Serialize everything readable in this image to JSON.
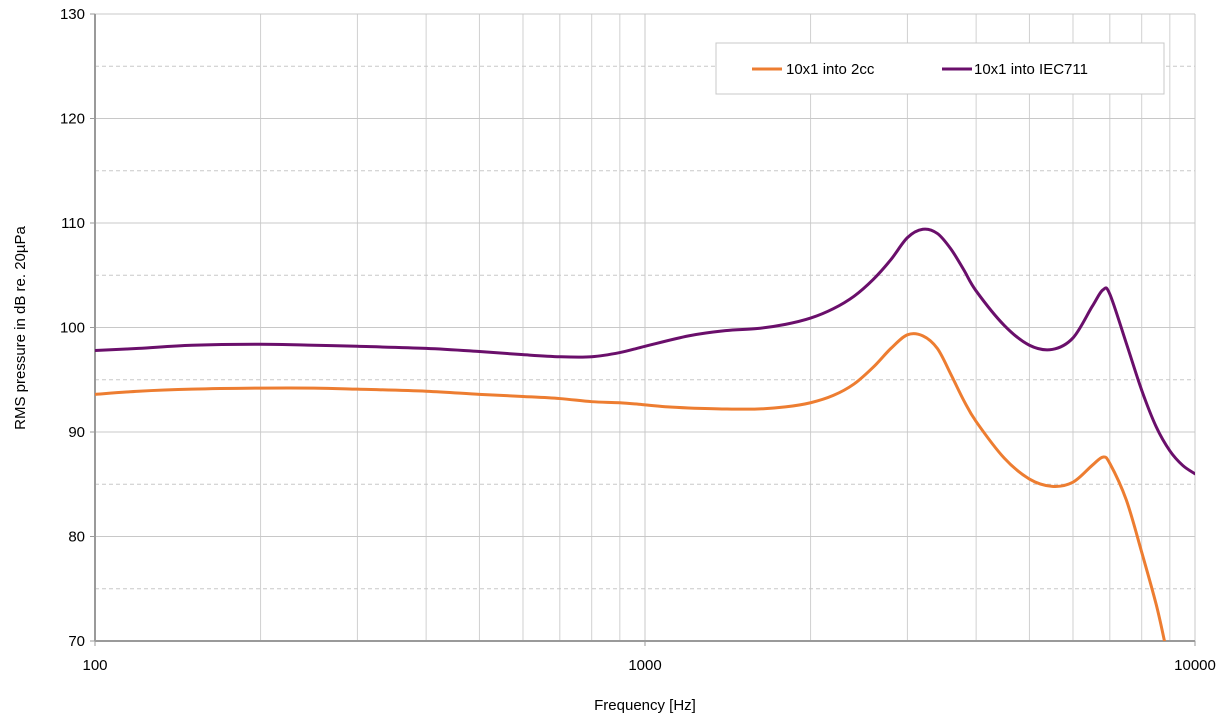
{
  "chart_data": {
    "type": "line",
    "title": "",
    "xlabel": "Frequency [Hz]",
    "ylabel": "RMS pressure in dB re. 20µPa",
    "xscale": "log",
    "xlim": [
      100,
      10000
    ],
    "ylim": [
      70,
      130
    ],
    "x_ticks": [
      100,
      1000,
      10000
    ],
    "x_tick_labels": [
      "100",
      "1000",
      "10000"
    ],
    "y_ticks": [
      70,
      80,
      90,
      100,
      110,
      120,
      130
    ],
    "y_tick_labels": [
      "70",
      "80",
      "90",
      "100",
      "110",
      "120",
      "130"
    ],
    "grid": true,
    "legend_position": "top-right",
    "series": [
      {
        "name": "10x1 into 2cc",
        "color": "#ED7D31",
        "x": [
          100,
          120,
          150,
          200,
          250,
          300,
          400,
          500,
          600,
          700,
          800,
          900,
          1000,
          1100,
          1200,
          1400,
          1600,
          1800,
          2000,
          2200,
          2400,
          2600,
          2800,
          3000,
          3200,
          3400,
          3600,
          3800,
          4000,
          4500,
          5000,
          5500,
          6000,
          6500,
          6800,
          7000,
          7500,
          8000,
          8500,
          8800
        ],
        "y": [
          93.6,
          93.9,
          94.1,
          94.2,
          94.2,
          94.1,
          93.9,
          93.6,
          93.4,
          93.2,
          92.9,
          92.8,
          92.6,
          92.4,
          92.3,
          92.2,
          92.2,
          92.4,
          92.8,
          93.5,
          94.6,
          96.2,
          98.0,
          99.3,
          99.2,
          98.0,
          95.5,
          93.0,
          91.0,
          87.5,
          85.5,
          84.8,
          85.2,
          86.8,
          87.6,
          87.0,
          83.5,
          78.5,
          73.5,
          70.0
        ]
      },
      {
        "name": "10x1 into IEC711",
        "color": "#6A0F6B",
        "x": [
          100,
          120,
          150,
          200,
          250,
          300,
          400,
          500,
          600,
          700,
          800,
          900,
          1000,
          1200,
          1400,
          1600,
          1800,
          2000,
          2200,
          2400,
          2600,
          2800,
          3000,
          3200,
          3400,
          3600,
          3800,
          4000,
          4500,
          5000,
          5500,
          6000,
          6500,
          6800,
          7000,
          7500,
          8000,
          8500,
          9000,
          9500,
          10000
        ],
        "y": [
          97.8,
          98.0,
          98.3,
          98.4,
          98.3,
          98.2,
          98.0,
          97.7,
          97.4,
          97.2,
          97.2,
          97.6,
          98.2,
          99.2,
          99.7,
          99.9,
          100.3,
          100.9,
          101.8,
          103.0,
          104.6,
          106.5,
          108.6,
          109.4,
          109.0,
          107.5,
          105.5,
          103.5,
          100.2,
          98.3,
          97.9,
          99.0,
          102.0,
          103.6,
          103.2,
          98.5,
          94.0,
          90.5,
          88.2,
          86.8,
          86.0
        ]
      }
    ]
  }
}
